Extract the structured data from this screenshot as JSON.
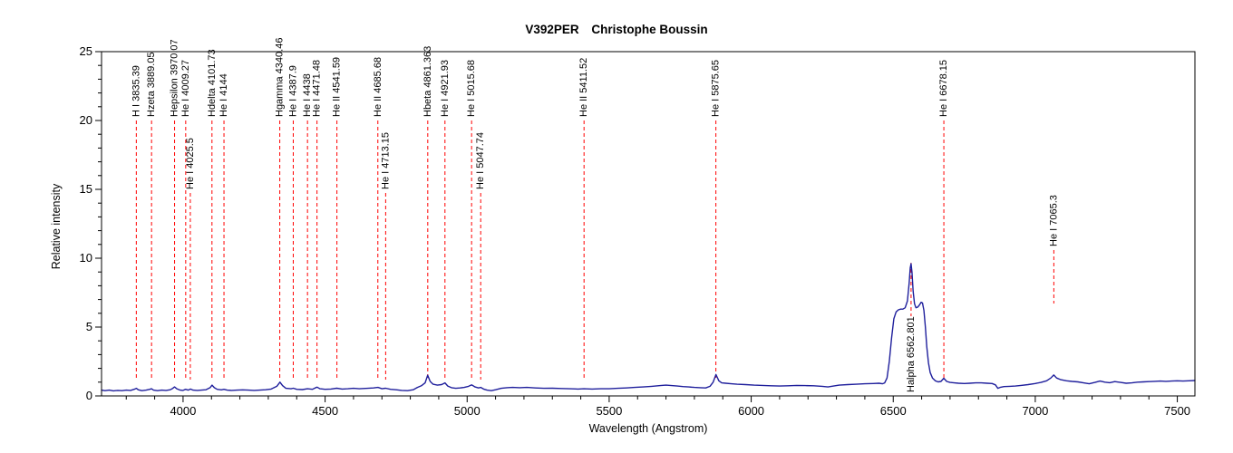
{
  "title": {
    "object": "V392PER",
    "author": "Christophe Boussin"
  },
  "axes": {
    "x_label": "Wavelength (Angstrom)",
    "y_label": "Relative intensity"
  },
  "chart_data": {
    "type": "line",
    "title": "V392PER  Christophe Boussin",
    "xlabel": "Wavelength (Angstrom)",
    "ylabel": "Relative intensity",
    "xlim": [
      3713,
      7562
    ],
    "ylim": [
      0,
      25
    ],
    "x_major_step": 500,
    "x_minor_step": 100,
    "y_major_step": 5,
    "y_minor_step": 1,
    "x_major_ticks": [
      4000,
      4500,
      5000,
      5500,
      6000,
      6500,
      7000,
      7500
    ],
    "y_major_ticks": [
      0,
      5,
      10,
      15,
      20,
      25
    ],
    "grid": false,
    "legend": "none",
    "colors": {
      "curve": "#1f1f9c",
      "marker_line": "#ff0000",
      "axis": "#000000",
      "background": "#ffffff"
    },
    "series": [
      {
        "name": "spectrum",
        "points": [
          [
            3713,
            0.42
          ],
          [
            3725,
            0.38
          ],
          [
            3740,
            0.42
          ],
          [
            3755,
            0.37
          ],
          [
            3770,
            0.4
          ],
          [
            3785,
            0.38
          ],
          [
            3800,
            0.42
          ],
          [
            3815,
            0.4
          ],
          [
            3830,
            0.5
          ],
          [
            3836,
            0.55
          ],
          [
            3842,
            0.45
          ],
          [
            3855,
            0.38
          ],
          [
            3870,
            0.42
          ],
          [
            3883,
            0.48
          ],
          [
            3889,
            0.52
          ],
          [
            3896,
            0.42
          ],
          [
            3910,
            0.38
          ],
          [
            3925,
            0.42
          ],
          [
            3940,
            0.4
          ],
          [
            3955,
            0.45
          ],
          [
            3964,
            0.55
          ],
          [
            3970,
            0.65
          ],
          [
            3978,
            0.52
          ],
          [
            3990,
            0.42
          ],
          [
            4000,
            0.4
          ],
          [
            4009,
            0.48
          ],
          [
            4018,
            0.42
          ],
          [
            4026,
            0.5
          ],
          [
            4035,
            0.42
          ],
          [
            4050,
            0.4
          ],
          [
            4065,
            0.42
          ],
          [
            4080,
            0.45
          ],
          [
            4095,
            0.6
          ],
          [
            4102,
            0.78
          ],
          [
            4110,
            0.6
          ],
          [
            4120,
            0.48
          ],
          [
            4135,
            0.44
          ],
          [
            4144,
            0.48
          ],
          [
            4155,
            0.42
          ],
          [
            4170,
            0.4
          ],
          [
            4190,
            0.42
          ],
          [
            4210,
            0.44
          ],
          [
            4230,
            0.42
          ],
          [
            4250,
            0.4
          ],
          [
            4270,
            0.42
          ],
          [
            4290,
            0.45
          ],
          [
            4310,
            0.5
          ],
          [
            4330,
            0.7
          ],
          [
            4341,
            1.0
          ],
          [
            4350,
            0.75
          ],
          [
            4362,
            0.55
          ],
          [
            4380,
            0.52
          ],
          [
            4388,
            0.56
          ],
          [
            4400,
            0.48
          ],
          [
            4420,
            0.46
          ],
          [
            4438,
            0.52
          ],
          [
            4455,
            0.48
          ],
          [
            4465,
            0.58
          ],
          [
            4472,
            0.64
          ],
          [
            4482,
            0.52
          ],
          [
            4500,
            0.48
          ],
          [
            4520,
            0.5
          ],
          [
            4541,
            0.56
          ],
          [
            4560,
            0.5
          ],
          [
            4580,
            0.52
          ],
          [
            4600,
            0.55
          ],
          [
            4620,
            0.52
          ],
          [
            4650,
            0.55
          ],
          [
            4670,
            0.58
          ],
          [
            4686,
            0.62
          ],
          [
            4700,
            0.52
          ],
          [
            4713,
            0.56
          ],
          [
            4730,
            0.48
          ],
          [
            4750,
            0.45
          ],
          [
            4770,
            0.4
          ],
          [
            4790,
            0.38
          ],
          [
            4810,
            0.45
          ],
          [
            4825,
            0.62
          ],
          [
            4840,
            0.75
          ],
          [
            4852,
            0.95
          ],
          [
            4861,
            1.5
          ],
          [
            4870,
            1.05
          ],
          [
            4880,
            0.85
          ],
          [
            4895,
            0.78
          ],
          [
            4910,
            0.82
          ],
          [
            4922,
            0.95
          ],
          [
            4932,
            0.72
          ],
          [
            4945,
            0.6
          ],
          [
            4960,
            0.55
          ],
          [
            4975,
            0.58
          ],
          [
            4990,
            0.62
          ],
          [
            5005,
            0.7
          ],
          [
            5016,
            0.8
          ],
          [
            5028,
            0.65
          ],
          [
            5040,
            0.58
          ],
          [
            5048,
            0.62
          ],
          [
            5058,
            0.5
          ],
          [
            5070,
            0.42
          ],
          [
            5085,
            0.38
          ],
          [
            5100,
            0.45
          ],
          [
            5120,
            0.55
          ],
          [
            5140,
            0.6
          ],
          [
            5160,
            0.62
          ],
          [
            5185,
            0.6
          ],
          [
            5210,
            0.62
          ],
          [
            5240,
            0.58
          ],
          [
            5270,
            0.55
          ],
          [
            5300,
            0.56
          ],
          [
            5330,
            0.54
          ],
          [
            5360,
            0.52
          ],
          [
            5390,
            0.5
          ],
          [
            5411,
            0.52
          ],
          [
            5440,
            0.5
          ],
          [
            5470,
            0.52
          ],
          [
            5500,
            0.52
          ],
          [
            5530,
            0.55
          ],
          [
            5560,
            0.58
          ],
          [
            5590,
            0.62
          ],
          [
            5620,
            0.65
          ],
          [
            5650,
            0.7
          ],
          [
            5680,
            0.75
          ],
          [
            5700,
            0.78
          ],
          [
            5720,
            0.75
          ],
          [
            5740,
            0.72
          ],
          [
            5760,
            0.68
          ],
          [
            5780,
            0.65
          ],
          [
            5800,
            0.62
          ],
          [
            5820,
            0.6
          ],
          [
            5840,
            0.58
          ],
          [
            5855,
            0.7
          ],
          [
            5866,
            1.0
          ],
          [
            5876,
            1.55
          ],
          [
            5886,
            1.1
          ],
          [
            5896,
            0.95
          ],
          [
            5910,
            0.92
          ],
          [
            5930,
            0.88
          ],
          [
            5950,
            0.85
          ],
          [
            5980,
            0.82
          ],
          [
            6010,
            0.78
          ],
          [
            6040,
            0.76
          ],
          [
            6070,
            0.74
          ],
          [
            6100,
            0.72
          ],
          [
            6130,
            0.74
          ],
          [
            6160,
            0.76
          ],
          [
            6190,
            0.75
          ],
          [
            6220,
            0.74
          ],
          [
            6250,
            0.7
          ],
          [
            6270,
            0.65
          ],
          [
            6290,
            0.72
          ],
          [
            6310,
            0.78
          ],
          [
            6340,
            0.82
          ],
          [
            6370,
            0.85
          ],
          [
            6400,
            0.88
          ],
          [
            6430,
            0.9
          ],
          [
            6450,
            0.92
          ],
          [
            6462,
            0.88
          ],
          [
            6470,
            0.95
          ],
          [
            6478,
            1.3
          ],
          [
            6486,
            2.5
          ],
          [
            6494,
            4.2
          ],
          [
            6502,
            5.6
          ],
          [
            6510,
            6.1
          ],
          [
            6518,
            6.25
          ],
          [
            6526,
            6.3
          ],
          [
            6534,
            6.3
          ],
          [
            6542,
            6.4
          ],
          [
            6550,
            6.9
          ],
          [
            6556,
            8.2
          ],
          [
            6560,
            9.3
          ],
          [
            6562.8,
            9.6
          ],
          [
            6566,
            9.0
          ],
          [
            6570,
            7.6
          ],
          [
            6575,
            6.7
          ],
          [
            6580,
            6.4
          ],
          [
            6586,
            6.45
          ],
          [
            6592,
            6.6
          ],
          [
            6598,
            6.8
          ],
          [
            6603,
            6.75
          ],
          [
            6608,
            6.2
          ],
          [
            6613,
            5.0
          ],
          [
            6618,
            3.6
          ],
          [
            6624,
            2.4
          ],
          [
            6630,
            1.7
          ],
          [
            6638,
            1.3
          ],
          [
            6648,
            1.1
          ],
          [
            6658,
            1.02
          ],
          [
            6668,
            1.05
          ],
          [
            6678,
            1.28
          ],
          [
            6688,
            1.05
          ],
          [
            6700,
            0.98
          ],
          [
            6715,
            0.95
          ],
          [
            6730,
            0.92
          ],
          [
            6750,
            0.9
          ],
          [
            6770,
            0.92
          ],
          [
            6790,
            0.95
          ],
          [
            6810,
            0.95
          ],
          [
            6830,
            0.92
          ],
          [
            6848,
            0.9
          ],
          [
            6860,
            0.8
          ],
          [
            6868,
            0.55
          ],
          [
            6876,
            0.62
          ],
          [
            6890,
            0.68
          ],
          [
            6910,
            0.7
          ],
          [
            6930,
            0.72
          ],
          [
            6950,
            0.76
          ],
          [
            6975,
            0.82
          ],
          [
            7000,
            0.9
          ],
          [
            7020,
            0.98
          ],
          [
            7040,
            1.1
          ],
          [
            7055,
            1.3
          ],
          [
            7065,
            1.52
          ],
          [
            7075,
            1.3
          ],
          [
            7090,
            1.18
          ],
          [
            7110,
            1.1
          ],
          [
            7130,
            1.05
          ],
          [
            7150,
            1.02
          ],
          [
            7170,
            0.95
          ],
          [
            7190,
            0.88
          ],
          [
            7210,
            0.98
          ],
          [
            7228,
            1.08
          ],
          [
            7245,
            1.0
          ],
          [
            7262,
            0.96
          ],
          [
            7280,
            1.04
          ],
          [
            7300,
            0.98
          ],
          [
            7320,
            0.92
          ],
          [
            7340,
            0.95
          ],
          [
            7360,
            1.0
          ],
          [
            7380,
            1.02
          ],
          [
            7400,
            1.04
          ],
          [
            7420,
            1.06
          ],
          [
            7440,
            1.08
          ],
          [
            7460,
            1.06
          ],
          [
            7480,
            1.08
          ],
          [
            7500,
            1.1
          ],
          [
            7520,
            1.08
          ],
          [
            7540,
            1.1
          ],
          [
            7562,
            1.12
          ]
        ]
      }
    ],
    "line_markers": [
      {
        "label": "H I 3835.39",
        "wavelength": 3835.39,
        "tier": "tall"
      },
      {
        "label": "Hzeta 3889.05",
        "wavelength": 3889.05,
        "tier": "tall"
      },
      {
        "label": "Hepsilon 3970.07",
        "wavelength": 3970.07,
        "tier": "tall"
      },
      {
        "label": "He I 4009.27",
        "wavelength": 4009.27,
        "tier": "tall"
      },
      {
        "label": "He I 4025.5",
        "wavelength": 4025.5,
        "tier": "low"
      },
      {
        "label": "Hdelta 4101.73",
        "wavelength": 4101.73,
        "tier": "tall"
      },
      {
        "label": "He I 4144",
        "wavelength": 4144,
        "tier": "tall"
      },
      {
        "label": "Hgamma 4340.46",
        "wavelength": 4340.46,
        "tier": "tall"
      },
      {
        "label": "He I 4387.9",
        "wavelength": 4387.9,
        "tier": "tall"
      },
      {
        "label": "He I 4438",
        "wavelength": 4438,
        "tier": "tall"
      },
      {
        "label": "He I 4471.48",
        "wavelength": 4471.48,
        "tier": "tall"
      },
      {
        "label": "He II 4541.59",
        "wavelength": 4541.59,
        "tier": "tall"
      },
      {
        "label": "He II 4685.68",
        "wavelength": 4685.68,
        "tier": "tall"
      },
      {
        "label": "He I 4713.15",
        "wavelength": 4713.15,
        "tier": "low"
      },
      {
        "label": "Hbeta 4861.363",
        "wavelength": 4861.363,
        "tier": "tall"
      },
      {
        "label": "He I 4921.93",
        "wavelength": 4921.93,
        "tier": "tall"
      },
      {
        "label": "He I 5015.68",
        "wavelength": 5015.68,
        "tier": "tall"
      },
      {
        "label": "He I 5047.74",
        "wavelength": 5047.74,
        "tier": "low"
      },
      {
        "label": "He II 5411.52",
        "wavelength": 5411.52,
        "tier": "tall"
      },
      {
        "label": "He I 5875.65",
        "wavelength": 5875.65,
        "tier": "tall"
      },
      {
        "label": "Halpha 6562.801",
        "wavelength": 6562.801,
        "tier": "inside-peak"
      },
      {
        "label": "He I 6678.15",
        "wavelength": 6678.15,
        "tier": "tall"
      },
      {
        "label": "He I 7065.3",
        "wavelength": 7065.3,
        "tier": "short-mid"
      }
    ]
  }
}
